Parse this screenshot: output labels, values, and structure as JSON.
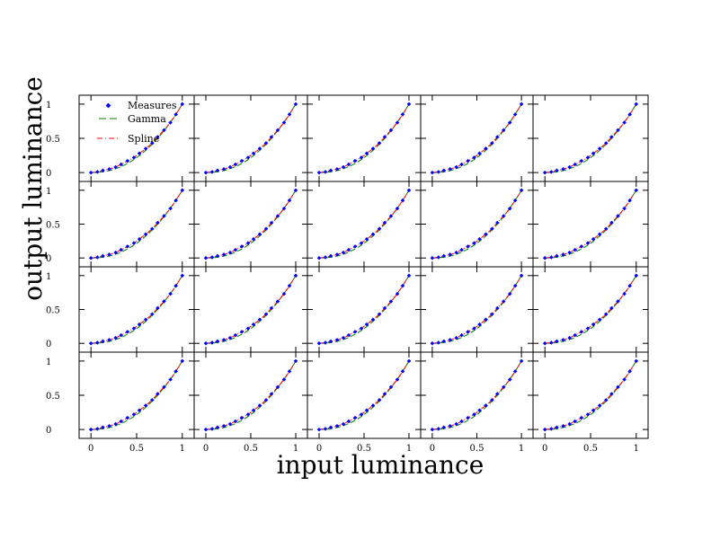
{
  "figure": {
    "xlabel": "input luminance",
    "ylabel": "output luminance"
  },
  "legend": {
    "measures_label": "Measures",
    "gamma_label": "Gamma",
    "spline_label": "Spline"
  },
  "colors": {
    "measures": "#0000ff",
    "gamma": "#008000",
    "spline": "#ff0000",
    "axes": "#000000"
  },
  "chart_data": {
    "type": "scatter",
    "layout": {
      "rows": 4,
      "cols": 5
    },
    "panels_count": 20,
    "x_ticks": [
      "0",
      "0.5",
      "1"
    ],
    "y_ticks": [
      "0",
      "0.5",
      "1"
    ],
    "xlim": [
      -0.13,
      1.13
    ],
    "ylim": [
      -0.13,
      1.13
    ],
    "x": [
      0,
      0.07,
      0.13,
      0.2,
      0.27,
      0.33,
      0.4,
      0.47,
      0.53,
      0.6,
      0.67,
      0.73,
      0.8,
      0.87,
      0.93,
      1
    ],
    "series": [
      {
        "name": "Measures",
        "style": "points",
        "color": "#0000ff",
        "values": [
          0,
          0.01,
          0.03,
          0.05,
          0.08,
          0.12,
          0.17,
          0.22,
          0.28,
          0.35,
          0.43,
          0.52,
          0.62,
          0.73,
          0.85,
          1
        ]
      },
      {
        "name": "Gamma",
        "style": "dashed",
        "color": "#008000",
        "gamma": 2.2
      },
      {
        "name": "Spline",
        "style": "dash-dot",
        "color": "#ff0000"
      }
    ],
    "grid": false,
    "legend_position": "top-left of first panel"
  }
}
